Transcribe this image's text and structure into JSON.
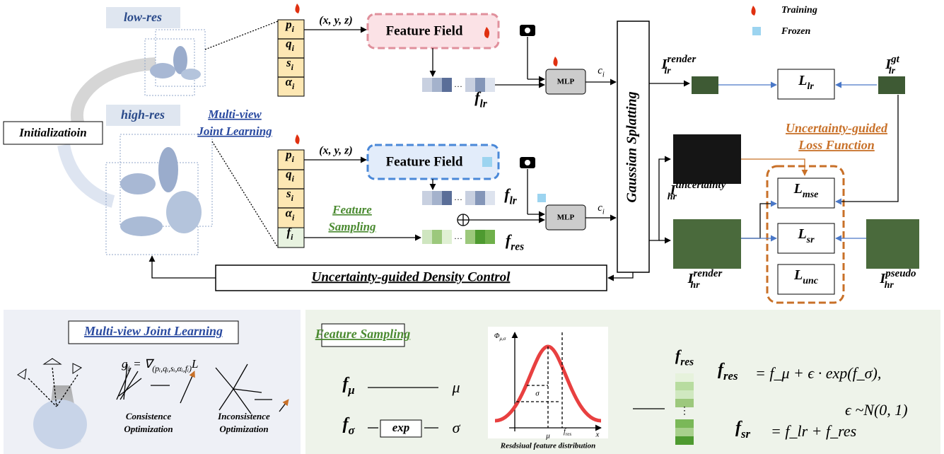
{
  "legend": {
    "training": "Training",
    "frozen": "Frozen"
  },
  "pipeline": {
    "low_res": "low-res",
    "high_res": "high-res",
    "initialization": "Initializatioin",
    "attributes_lr": [
      {
        "base": "p",
        "sub": "i"
      },
      {
        "base": "q",
        "sub": "i"
      },
      {
        "base": "s",
        "sub": "i"
      },
      {
        "base": "α",
        "sub": "i"
      }
    ],
    "attributes_hr": [
      {
        "base": "p",
        "sub": "i"
      },
      {
        "base": "q",
        "sub": "i"
      },
      {
        "base": "s",
        "sub": "i"
      },
      {
        "base": "α",
        "sub": "i"
      },
      {
        "base": "f",
        "sub": "i"
      }
    ],
    "coords_lr": "(x, y, z)",
    "coords_hr": "(x, y, z)",
    "feature_field_lr": "Feature Field",
    "feature_field_hr": "Feature Field",
    "mlp_lr": "MLP",
    "mlp_hr": "MLP",
    "c_lr": {
      "base": "c",
      "sub": "i"
    },
    "c_hr": {
      "base": "c",
      "sub": "i"
    },
    "f_lr_top": {
      "base": "f",
      "sub": "lr"
    },
    "f_lr_bottom": {
      "base": "f",
      "sub": "lr"
    },
    "f_res": {
      "base": "f",
      "sub": "res"
    },
    "multi_view_label": [
      "Multi-view",
      "Joint Learning"
    ],
    "feature_sampling_label": [
      "Feature",
      "Sampling"
    ],
    "loss_label": [
      "Uncertainty-guided",
      "Loss Function"
    ],
    "gaussian_splatting": "Gaussian Splatting",
    "density_control": "Uncertainty-guided Density Control",
    "images": {
      "lr_render": {
        "base": "I",
        "sub": "lr",
        "sup": "render"
      },
      "lr_gt": {
        "base": "I",
        "sub": "lr",
        "sup": "gt"
      },
      "hr_uncertainty": {
        "base": "I",
        "sub": "hr",
        "sup": "uncertainty"
      },
      "hr_render": {
        "base": "I",
        "sub": "hr",
        "sup": "render"
      },
      "hr_pseudo": {
        "base": "I",
        "sub": "hr",
        "sup": "pseudo"
      }
    },
    "losses": {
      "lr": {
        "base": "L",
        "sub": "lr"
      },
      "mse": {
        "base": "L",
        "sub": "mse"
      },
      "sr": {
        "base": "L",
        "sub": "sr"
      },
      "unc": {
        "base": "L",
        "sub": "unc"
      }
    }
  },
  "panel_mvjl": {
    "title": "Multi-view Joint Learning",
    "gradient": {
      "base": "g",
      "sub": "i",
      "rest": " = ∇",
      "sub2": "(pᵢ,qᵢ,sᵢ,αᵢ,fᵢ)",
      "tail": "L"
    },
    "consistence": [
      "Consistence",
      "Optimization"
    ],
    "inconsistence": [
      "Inconsistence",
      "Optimization"
    ]
  },
  "panel_fs": {
    "title": "Feature Sampling",
    "f_mu": {
      "base": "f",
      "sub": "μ"
    },
    "mu": "μ",
    "f_sigma": {
      "base": "f",
      "sub": "σ"
    },
    "exp": "exp",
    "sigma": "σ",
    "plot": {
      "y_label": "Φ",
      "y_label_sub": "μ,σ",
      "sigma": "σ",
      "mu": "μ",
      "f_res": "f",
      "f_res_sub": "res",
      "x": "x",
      "caption": "Resdsiual feature distribution"
    },
    "f_res": {
      "base": "f",
      "sub": "res"
    },
    "dots": "⋮",
    "eq1": "= f_μ + ϵ · exp(f_σ),",
    "eq1_lhs": {
      "base": "f",
      "sub": "res"
    },
    "eq2": "ϵ ~N(0, 1)",
    "eq3": "= f_lr + f_res",
    "eq3_lhs": {
      "base": "f",
      "sub": "sr"
    }
  }
}
